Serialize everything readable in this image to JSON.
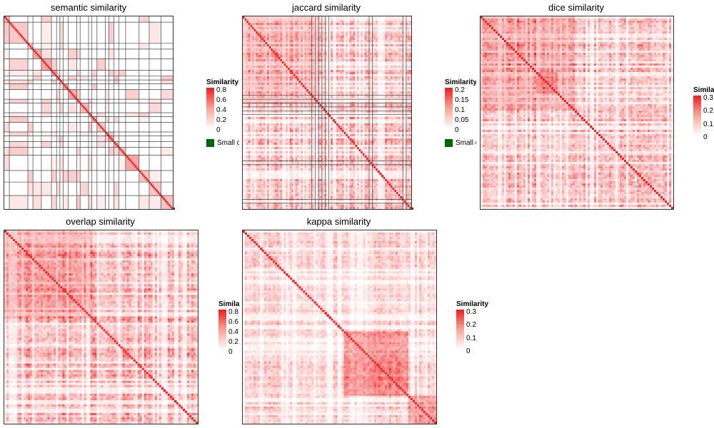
{
  "chart_data": [
    {
      "type": "heatmap",
      "title": "semantic similarity",
      "legend": {
        "title": "Similarity",
        "ticks": [
          "0.8",
          "0.6",
          "0.4",
          "0.2",
          "0"
        ],
        "max": 0.85,
        "small_label": "Small c"
      },
      "pattern": "block-clusters",
      "cluster_boundaries": [
        0.03,
        0.14,
        0.17,
        0.22,
        0.28,
        0.31,
        0.33,
        0.35,
        0.38,
        0.43,
        0.45,
        0.5,
        0.52,
        0.55,
        0.6,
        0.62,
        0.65,
        0.68,
        0.72,
        0.8,
        0.86,
        0.93
      ],
      "colors": {
        "high": "#ef1c1c",
        "low": "#ffffff",
        "small": "#006400"
      }
    },
    {
      "type": "heatmap",
      "title": "jaccard similarity",
      "legend": {
        "title": "Similarity",
        "ticks": [
          "0.2",
          "0.15",
          "0.1",
          "0.05",
          "0"
        ],
        "max": 0.22,
        "small_label": "Small c"
      },
      "pattern": "dense-noise",
      "colors": {
        "high": "#ef1c1c",
        "low": "#ffffff",
        "small": "#006400"
      }
    },
    {
      "type": "heatmap",
      "title": "dice similarity",
      "legend": {
        "title": "Similari",
        "ticks": [
          "0.3",
          "0.2",
          "0.1",
          "0"
        ],
        "max": 0.33
      },
      "pattern": "dense-noise",
      "colors": {
        "high": "#ef1c1c",
        "low": "#ffffff"
      }
    },
    {
      "type": "heatmap",
      "title": "overlap similarity",
      "legend": {
        "title": "Similar",
        "ticks": [
          "0.8",
          "0.6",
          "0.4",
          "0.2",
          "0"
        ],
        "max": 0.85
      },
      "pattern": "dense-noise",
      "colors": {
        "high": "#ef1c1c",
        "low": "#ffffff"
      }
    },
    {
      "type": "heatmap",
      "title": "kappa similarity",
      "legend": {
        "title": "Similarity",
        "ticks": [
          "0.3",
          "0.2",
          "0.1",
          "0"
        ],
        "max": 0.33
      },
      "pattern": "dense-noise",
      "colors": {
        "high": "#ef1c1c",
        "low": "#ffffff"
      }
    }
  ]
}
